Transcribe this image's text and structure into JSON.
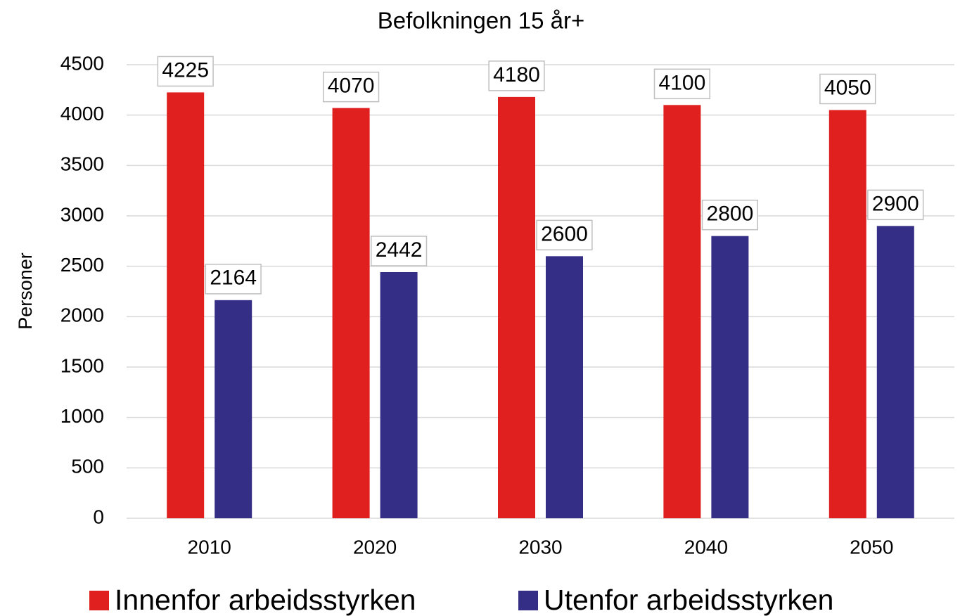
{
  "chart_data": {
    "type": "bar",
    "title": "Befolkningen 15 år+",
    "y_label": "Personer",
    "categories": [
      "2010",
      "2020",
      "2030",
      "2040",
      "2050"
    ],
    "series": [
      {
        "name": "Innenfor arbeidsstyrken",
        "color": "#e01f1f",
        "values": [
          4225,
          4070,
          4180,
          4100,
          4050
        ]
      },
      {
        "name": "Utenfor arbeidsstyrken",
        "color": "#352e87",
        "values": [
          2164,
          2442,
          2600,
          2800,
          2900
        ]
      }
    ],
    "ylim": [
      0,
      4500
    ],
    "yticks": [
      0,
      500,
      1000,
      1500,
      2000,
      2500,
      3000,
      3500,
      4000,
      4500
    ],
    "grid": true,
    "legend": "bottom"
  }
}
